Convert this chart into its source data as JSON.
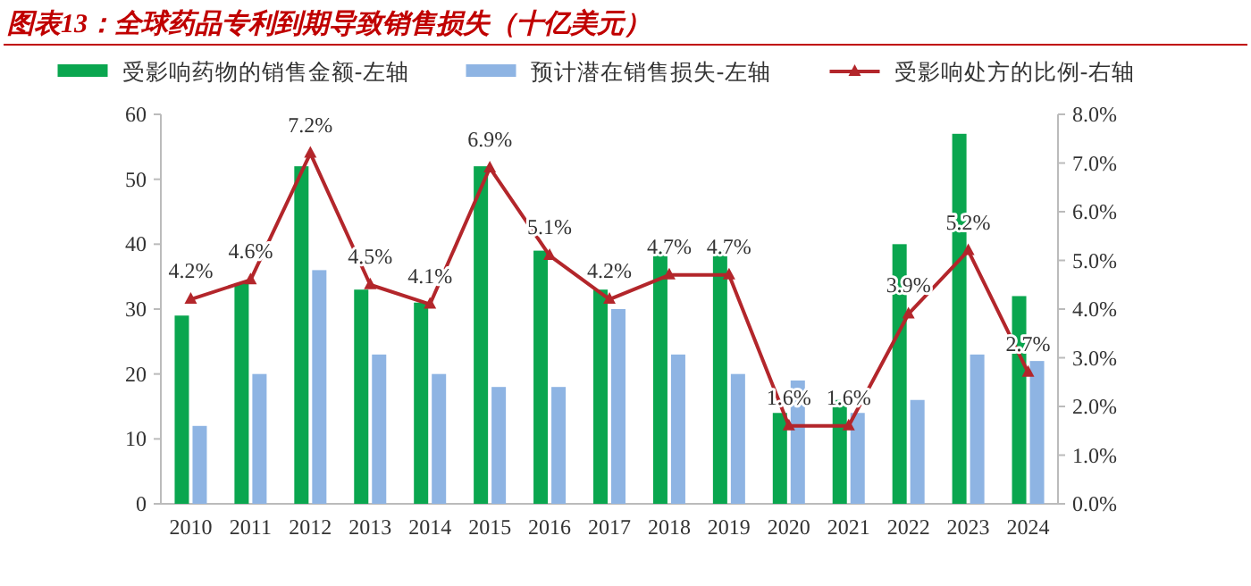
{
  "chart_data": {
    "type": "bar",
    "title": "图表13：全球药品专利到期导致销售损失（十亿美元）",
    "categories": [
      "2010",
      "2011",
      "2012",
      "2013",
      "2014",
      "2015",
      "2016",
      "2017",
      "2018",
      "2019",
      "2020",
      "2021",
      "2022",
      "2023",
      "2024"
    ],
    "series": [
      {
        "name": "受影响药物的销售金额-左轴",
        "color": "#0aa64f",
        "values": [
          29,
          34,
          52,
          33,
          31,
          52,
          39,
          33,
          39,
          39,
          14,
          16,
          40,
          57,
          32
        ]
      },
      {
        "name": "预计潜在销售损失-左轴",
        "color": "#8eb4e3",
        "values": [
          12,
          20,
          36,
          23,
          20,
          18,
          18,
          30,
          23,
          20,
          19,
          14,
          16,
          23,
          22
        ]
      },
      {
        "name": "受影响处方的比例-右轴",
        "type": "line",
        "axis": "y2",
        "marker": "triangle",
        "color": "#b3262b",
        "values": [
          4.2,
          4.6,
          7.2,
          4.5,
          4.1,
          6.9,
          5.1,
          4.2,
          4.7,
          4.7,
          1.6,
          1.6,
          3.9,
          5.2,
          2.7
        ],
        "value_labels": [
          "4.2%",
          "4.6%",
          "7.2%",
          "4.5%",
          "4.1%",
          "6.9%",
          "5.1%",
          "4.2%",
          "4.7%",
          "4.7%",
          "1.6%",
          "1.6%",
          "3.9%",
          "5.2%",
          "2.7%"
        ]
      }
    ],
    "ylim": [
      0,
      60
    ],
    "yticks": [
      0,
      10,
      20,
      30,
      40,
      50,
      60
    ],
    "y2lim": [
      0,
      8
    ],
    "y2ticks": [
      {
        "value": 0,
        "label": "0.0%"
      },
      {
        "value": 1,
        "label": "1.0%"
      },
      {
        "value": 2,
        "label": "2.0%"
      },
      {
        "value": 3,
        "label": "3.0%"
      },
      {
        "value": 4,
        "label": "4.0%"
      },
      {
        "value": 5,
        "label": "5.0%"
      },
      {
        "value": 6,
        "label": "6.0%"
      },
      {
        "value": 7,
        "label": "7.0%"
      },
      {
        "value": 8,
        "label": "8.0%"
      }
    ],
    "legend": "top"
  }
}
